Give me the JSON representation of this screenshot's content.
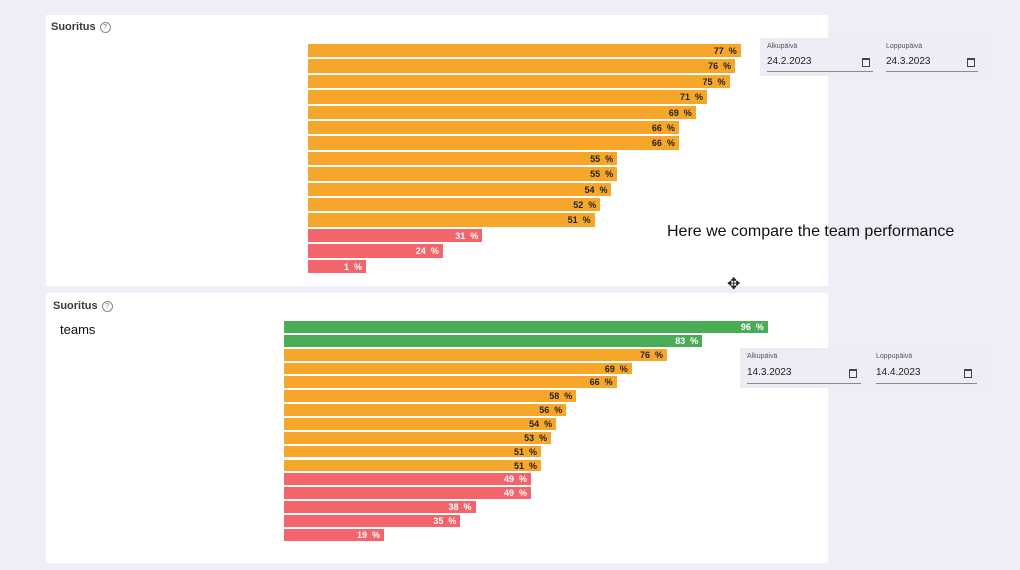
{
  "colors": {
    "high": "#4aac55",
    "mid": "#f6a72a",
    "low": "#f2656a",
    "background": "#efedf6",
    "panel": "#ffffff"
  },
  "panel_top": {
    "title": "Suoritus",
    "help_icon": "help-circle-icon",
    "start_date": {
      "label": "Alkupäivä",
      "value": "24.2.2023"
    },
    "end_date": {
      "label": "Loppupäivä",
      "value": "24.3.2023"
    },
    "chart_data": {
      "type": "bar",
      "orientation": "horizontal",
      "title": "Suoritus",
      "unit": "%",
      "values": [
        77,
        76,
        75,
        71,
        69,
        66,
        66,
        55,
        55,
        54,
        52,
        51,
        31,
        24,
        1
      ],
      "labels": [
        "77  %",
        "76  %",
        "75  %",
        "71  %",
        "69  %",
        "66  %",
        "66  %",
        "55  %",
        "55  %",
        "54  %",
        "52  %",
        "51  %",
        "31  %",
        "24  %",
        "1  %"
      ],
      "levels": [
        "mid",
        "mid",
        "mid",
        "mid",
        "mid",
        "mid",
        "mid",
        "mid",
        "mid",
        "mid",
        "mid",
        "mid",
        "low",
        "low",
        "low"
      ]
    }
  },
  "annotation": "Here we compare the team performance",
  "panel_bottom": {
    "title": "Suoritus",
    "help_icon": "help-circle-icon",
    "overlay_label": "teams",
    "start_date": {
      "label": "Alkupäivä",
      "value": "14.3.2023"
    },
    "end_date": {
      "label": "Loppupäivä",
      "value": "14.4.2023"
    },
    "chart_data": {
      "type": "bar",
      "orientation": "horizontal",
      "title": "Suoritus",
      "unit": "%",
      "values": [
        96,
        83,
        76,
        69,
        66,
        58,
        56,
        54,
        53,
        51,
        51,
        49,
        49,
        38,
        35,
        19
      ],
      "labels": [
        "96  %",
        "83  %",
        "76  %",
        "69  %",
        "66  %",
        "58  %",
        "56  %",
        "54  %",
        "53  %",
        "51  %",
        "51  %",
        "49  %",
        "49  %",
        "38  %",
        "35  %",
        "19  %"
      ],
      "levels": [
        "high",
        "high",
        "mid",
        "mid",
        "mid",
        "mid",
        "mid",
        "mid",
        "mid",
        "mid",
        "mid",
        "low",
        "low",
        "low",
        "low",
        "low"
      ]
    }
  }
}
